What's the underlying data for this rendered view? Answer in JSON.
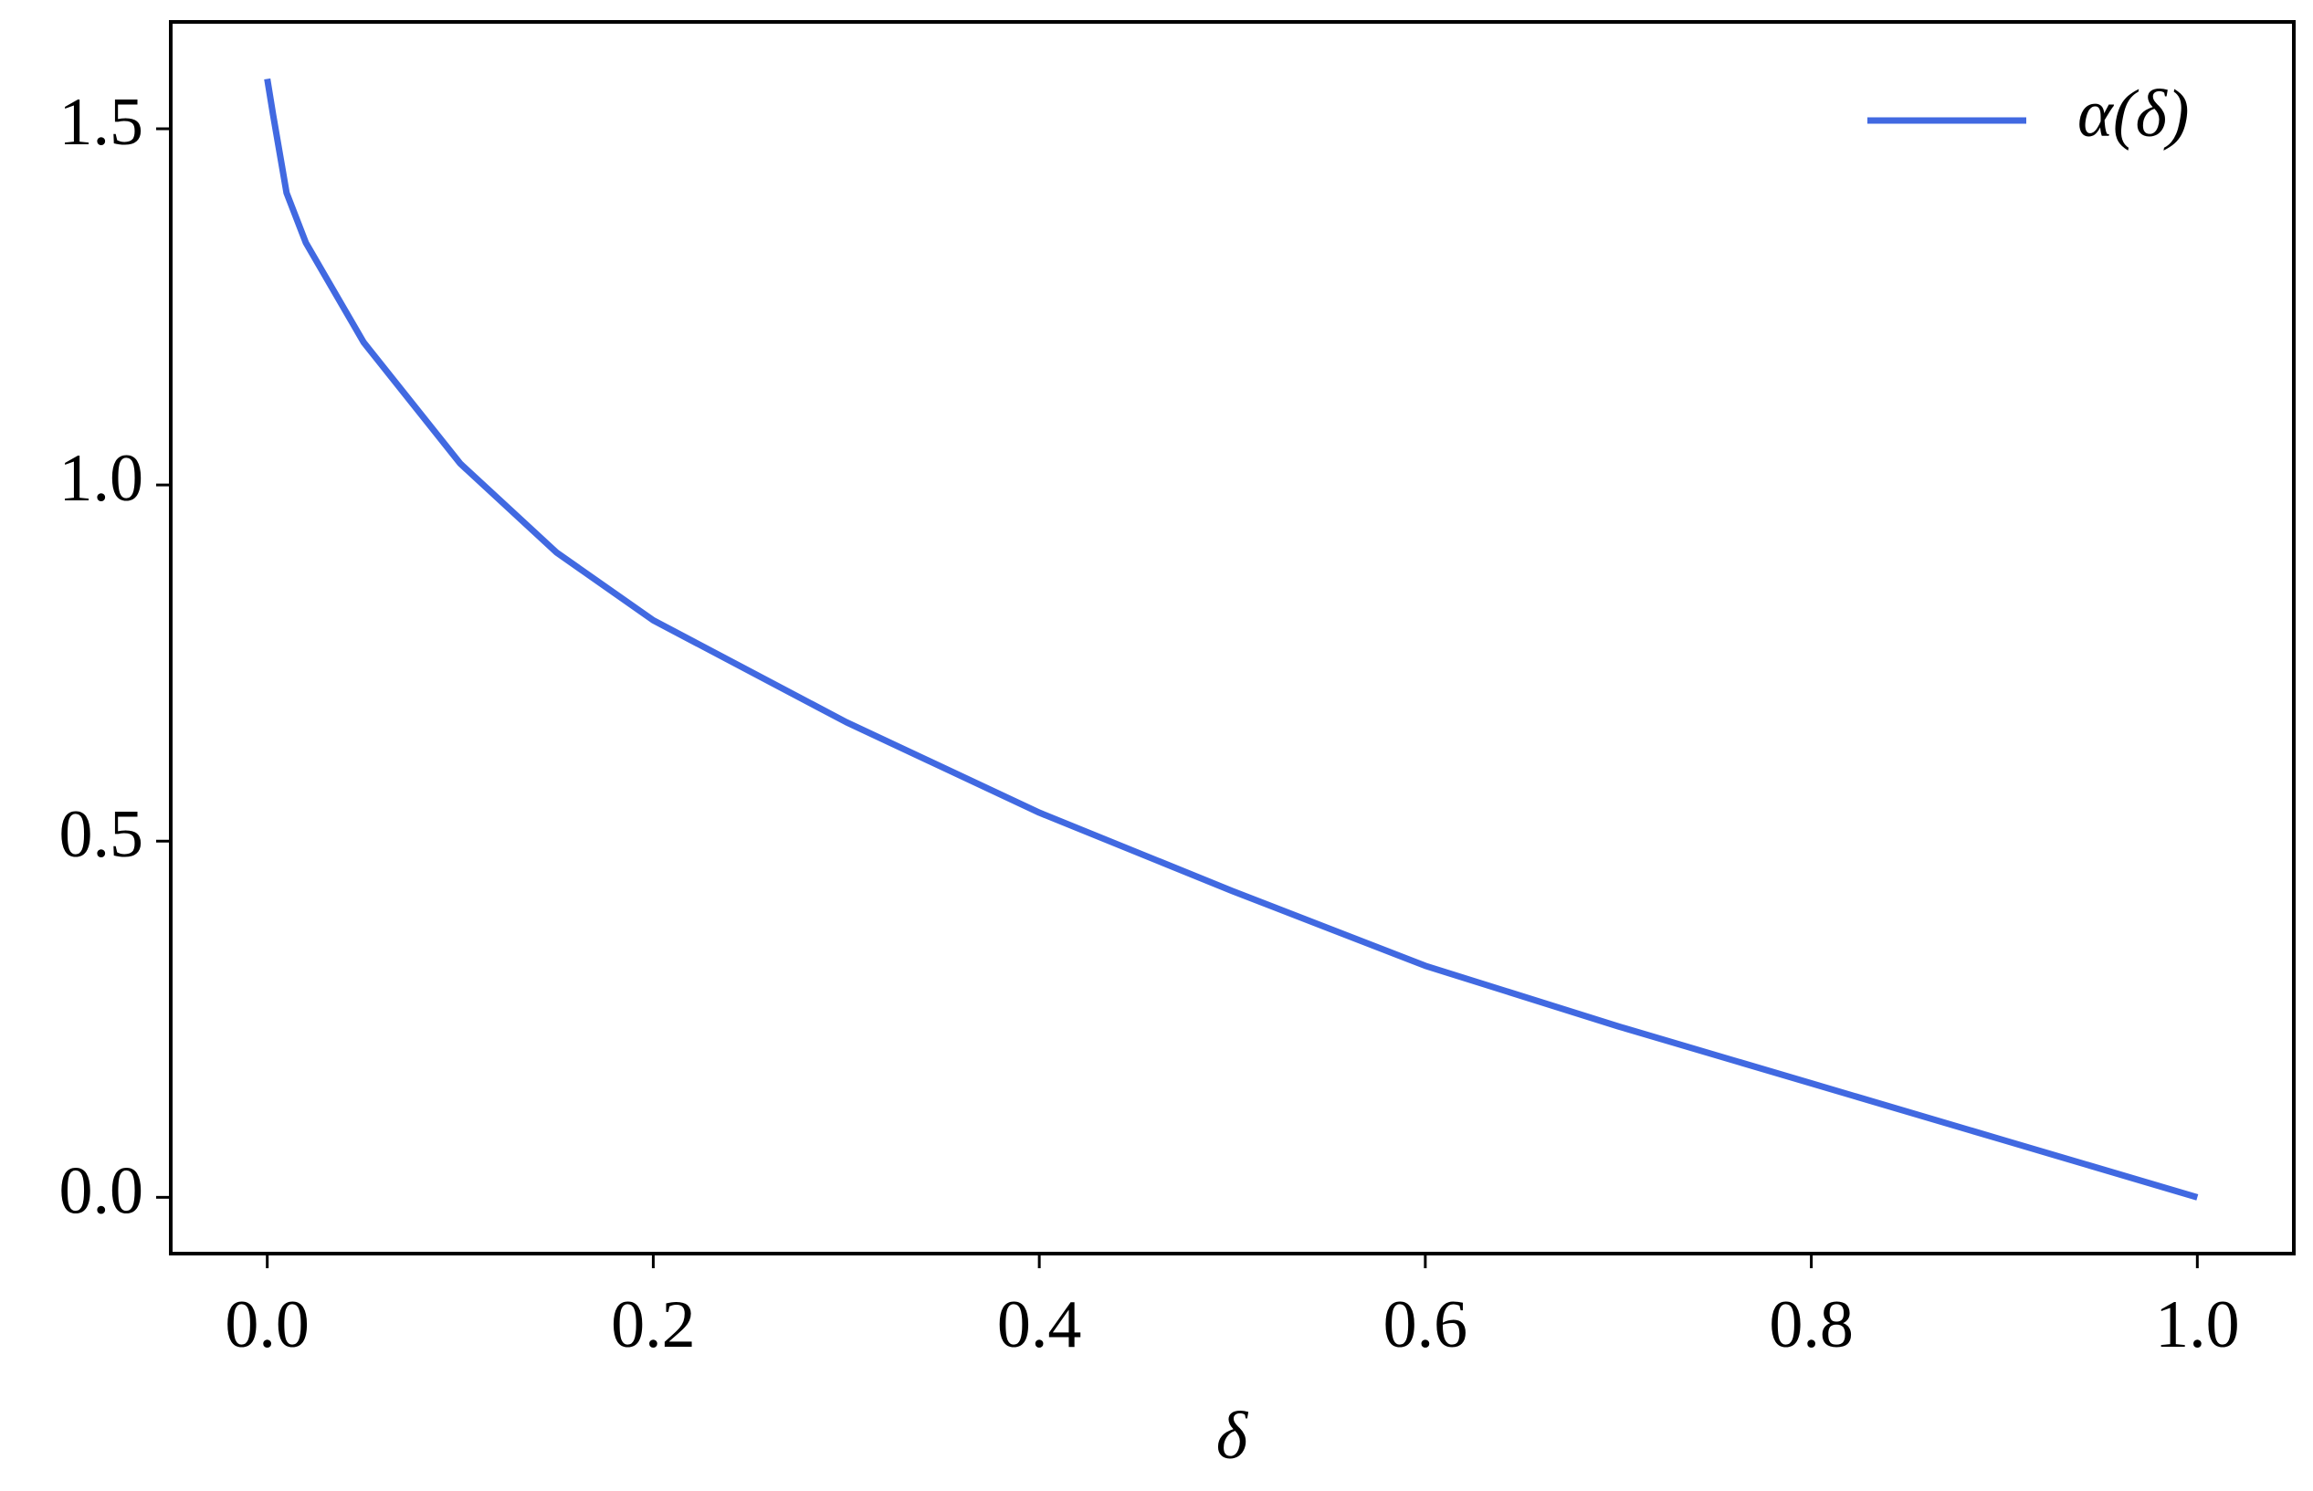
{
  "chart_data": {
    "type": "line",
    "x_label": "δ",
    "x": [
      0,
      0.003,
      0.01,
      0.02,
      0.05,
      0.1,
      0.15,
      0.2,
      0.3,
      0.4,
      0.5,
      0.6,
      0.7,
      0.8,
      0.9,
      1.0
    ],
    "series": [
      {
        "name": "α(δ)",
        "color": "#4169e1",
        "values": [
          1.57,
          1.52,
          1.41,
          1.34,
          1.2,
          1.03,
          0.905,
          0.81,
          0.667,
          0.54,
          0.43,
          0.325,
          0.24,
          0.16,
          0.08,
          0
        ]
      }
    ],
    "xlim": [
      -0.05,
      1.05
    ],
    "ylim": [
      -0.079,
      1.65
    ],
    "xticks": [
      {
        "value": 0,
        "label": "0.0"
      },
      0.2,
      0.4,
      0.6,
      0.8,
      {
        "value": 1,
        "label": "1.0"
      }
    ],
    "yticks": [
      {
        "value": 0,
        "label": "0.0"
      },
      0.5,
      {
        "value": 1,
        "label": "1.0"
      },
      1.5
    ],
    "legend": "upper right",
    "grid": false
  }
}
